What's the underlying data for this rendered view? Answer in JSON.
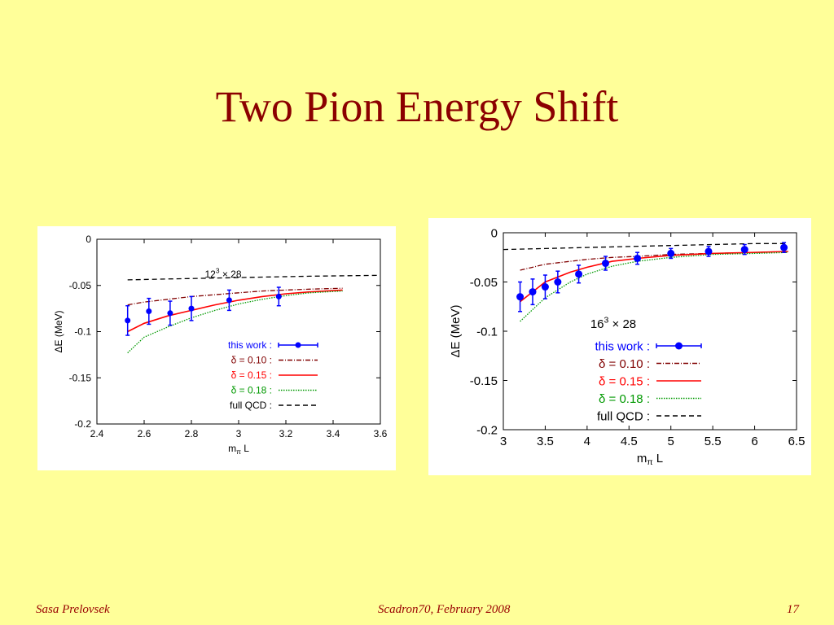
{
  "slide": {
    "title": "Two Pion Energy Shift",
    "footer_left": "Sasa Prelovsek",
    "footer_center": "Scadron70, February 2008",
    "footer_right": "17"
  },
  "colors": {
    "background": "#ffff99",
    "title": "#8b0000",
    "footer": "#990000",
    "data": "#0000ff",
    "delta_010": "#800000",
    "delta_015": "#ff0000",
    "delta_018": "#009900",
    "full_qcd": "#000000"
  },
  "chart_data": [
    {
      "type": "line",
      "annotation": {
        "base": "12",
        "sup": "3",
        "rest": " × 28"
      },
      "xlabel": {
        "main": "m",
        "sub": "π",
        "rest": " L"
      },
      "ylabel": "ΔE (MeV)",
      "xlim": [
        2.4,
        3.6
      ],
      "ylim": [
        -0.2,
        0
      ],
      "xticks": [
        "2.4",
        "2.6",
        "2.8",
        "3",
        "3.2",
        "3.4",
        "3.6"
      ],
      "yticks": [
        "0",
        "-0.05",
        "-0.1",
        "-0.15",
        "-0.2"
      ],
      "legend_position": "lower-right",
      "legend": [
        {
          "label": "this work :",
          "style": "points"
        },
        {
          "label": "δ = 0.10 :",
          "style": "dash-dot"
        },
        {
          "label": "δ = 0.15 :",
          "style": "solid"
        },
        {
          "label": "δ = 0.18 :",
          "style": "dotted"
        },
        {
          "label": "full QCD :",
          "style": "dashed"
        }
      ],
      "points": {
        "x": [
          2.53,
          2.62,
          2.71,
          2.8,
          2.96,
          3.17
        ],
        "y": [
          -0.088,
          -0.078,
          -0.08,
          -0.075,
          -0.066,
          -0.062
        ],
        "err": [
          0.016,
          0.014,
          0.013,
          0.013,
          0.011,
          0.01
        ]
      },
      "series": [
        {
          "x": [
            2.53,
            2.6,
            2.7,
            2.8,
            2.9,
            3.0,
            3.1,
            3.2,
            3.3,
            3.44
          ],
          "y": [
            -0.071,
            -0.068,
            -0.065,
            -0.062,
            -0.06,
            -0.058,
            -0.056,
            -0.055,
            -0.054,
            -0.053
          ]
        },
        {
          "x": [
            2.53,
            2.6,
            2.7,
            2.8,
            2.9,
            3.0,
            3.1,
            3.2,
            3.3,
            3.44
          ],
          "y": [
            -0.1,
            -0.091,
            -0.083,
            -0.077,
            -0.071,
            -0.066,
            -0.062,
            -0.059,
            -0.057,
            -0.055
          ]
        },
        {
          "x": [
            2.53,
            2.6,
            2.7,
            2.8,
            2.9,
            3.0,
            3.1,
            3.2,
            3.3,
            3.44
          ],
          "y": [
            -0.123,
            -0.106,
            -0.095,
            -0.085,
            -0.077,
            -0.07,
            -0.065,
            -0.061,
            -0.058,
            -0.056
          ]
        },
        {
          "x": [
            2.53,
            2.7,
            2.9,
            3.1,
            3.3,
            3.6
          ],
          "y": [
            -0.044,
            -0.043,
            -0.042,
            -0.041,
            -0.04,
            -0.039
          ]
        }
      ]
    },
    {
      "type": "line",
      "annotation": {
        "base": "16",
        "sup": "3",
        "rest": " × 28"
      },
      "xlabel": {
        "main": "m",
        "sub": "π",
        "rest": " L"
      },
      "ylabel": "ΔE (MeV)",
      "xlim": [
        3,
        6.5
      ],
      "ylim": [
        -0.2,
        0
      ],
      "xticks": [
        "3",
        "3.5",
        "4",
        "4.5",
        "5",
        "5.5",
        "6",
        "6.5"
      ],
      "yticks": [
        "0",
        "-0.05",
        "-0.1",
        "-0.15",
        "-0.2"
      ],
      "legend_position": "lower-right",
      "legend": [
        {
          "label": "this work :",
          "style": "points"
        },
        {
          "label": "δ = 0.10 :",
          "style": "dash-dot"
        },
        {
          "label": "δ = 0.15 :",
          "style": "solid"
        },
        {
          "label": "δ = 0.18 :",
          "style": "dotted"
        },
        {
          "label": "full QCD :",
          "style": "dashed"
        }
      ],
      "points": {
        "x": [
          3.2,
          3.35,
          3.5,
          3.65,
          3.9,
          4.22,
          4.6,
          5.0,
          5.45,
          5.88,
          6.35
        ],
        "y": [
          -0.065,
          -0.06,
          -0.055,
          -0.05,
          -0.042,
          -0.031,
          -0.026,
          -0.021,
          -0.019,
          -0.017,
          -0.015
        ],
        "err": [
          0.015,
          0.013,
          0.012,
          0.011,
          0.009,
          0.007,
          0.006,
          0.005,
          0.005,
          0.005,
          0.005
        ]
      },
      "series": [
        {
          "x": [
            3.2,
            3.5,
            3.8,
            4.0,
            4.3,
            4.6,
            5.0,
            5.5,
            6.0,
            6.4
          ],
          "y": [
            -0.038,
            -0.032,
            -0.029,
            -0.027,
            -0.025,
            -0.024,
            -0.022,
            -0.021,
            -0.02,
            -0.019
          ]
        },
        {
          "x": [
            3.2,
            3.5,
            3.8,
            4.0,
            4.3,
            4.6,
            5.0,
            5.5,
            6.0,
            6.4
          ],
          "y": [
            -0.07,
            -0.05,
            -0.04,
            -0.035,
            -0.029,
            -0.026,
            -0.023,
            -0.021,
            -0.02,
            -0.019
          ]
        },
        {
          "x": [
            3.2,
            3.5,
            3.8,
            4.0,
            4.3,
            4.6,
            5.0,
            5.5,
            6.0,
            6.4
          ],
          "y": [
            -0.09,
            -0.066,
            -0.05,
            -0.042,
            -0.034,
            -0.029,
            -0.025,
            -0.022,
            -0.021,
            -0.02
          ]
        },
        {
          "x": [
            3.0,
            3.5,
            4.0,
            4.5,
            5.0,
            5.5,
            6.0,
            6.4
          ],
          "y": [
            -0.017,
            -0.016,
            -0.015,
            -0.014,
            -0.013,
            -0.012,
            -0.011,
            -0.011
          ]
        }
      ]
    }
  ]
}
